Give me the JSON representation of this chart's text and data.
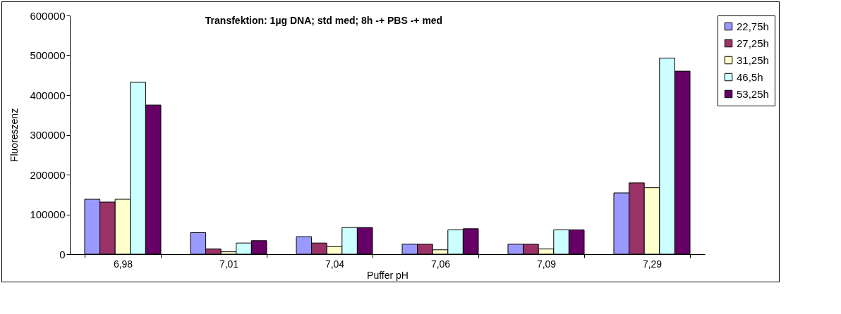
{
  "chart_data": {
    "type": "bar",
    "title": "Transfektion: 1µg DNA; std med; 8h -+ PBS -+ med",
    "xlabel": "Puffer pH",
    "ylabel": "Fluoreszenz",
    "categories": [
      "6,98",
      "7,01",
      "7,04",
      "7,06",
      "7,09",
      "7,29"
    ],
    "series": [
      {
        "name": "22,75h",
        "color": "#9999ff",
        "values": [
          138000,
          54000,
          44000,
          25000,
          25000,
          154000
        ]
      },
      {
        "name": "27,25h",
        "color": "#993366",
        "values": [
          131000,
          13000,
          28000,
          25000,
          25000,
          179000
        ]
      },
      {
        "name": "31,25h",
        "color": "#ffffcc",
        "values": [
          138000,
          6000,
          19000,
          11000,
          13000,
          167000
        ]
      },
      {
        "name": "46,5h",
        "color": "#ccffff",
        "values": [
          432000,
          28000,
          67000,
          61000,
          61000,
          493000
        ]
      },
      {
        "name": "53,25h",
        "color": "#660066",
        "values": [
          375000,
          34000,
          67000,
          64000,
          61000,
          460000
        ]
      }
    ],
    "ylim": [
      0,
      600000
    ],
    "yticks": [
      0,
      100000,
      200000,
      300000,
      400000,
      500000,
      600000
    ],
    "grid": false,
    "legend": "right"
  }
}
